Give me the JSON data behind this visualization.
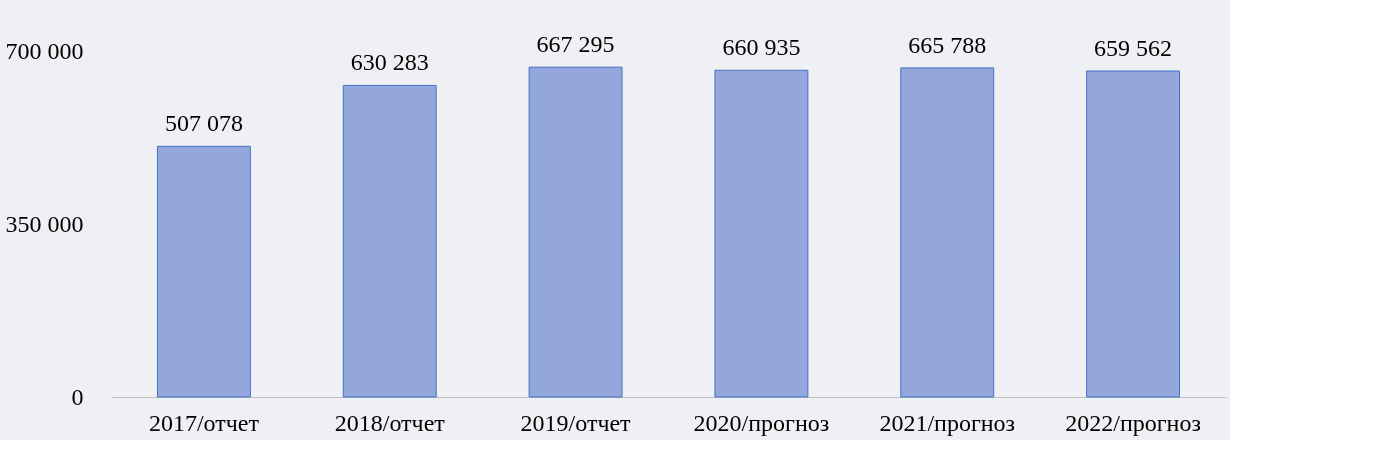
{
  "chart_data": {
    "type": "bar",
    "categories": [
      "2017/отчет",
      "2018/отчет",
      "2019/отчет",
      "2020/прогноз",
      "2021/прогноз",
      "2022/прогноз"
    ],
    "values": [
      507078,
      630283,
      667295,
      660935,
      665788,
      659562
    ],
    "value_labels": [
      "507 078",
      "630 283",
      "667 295",
      "660 935",
      "665 788",
      "659 562"
    ],
    "color": "#93a7dc",
    "ylim": [
      0,
      700000
    ],
    "yticks": [
      {
        "value": 0,
        "label": "0"
      },
      {
        "value": 350000,
        "label": "350 000"
      },
      {
        "value": 700000,
        "label": "700 000"
      }
    ],
    "grid": false
  }
}
